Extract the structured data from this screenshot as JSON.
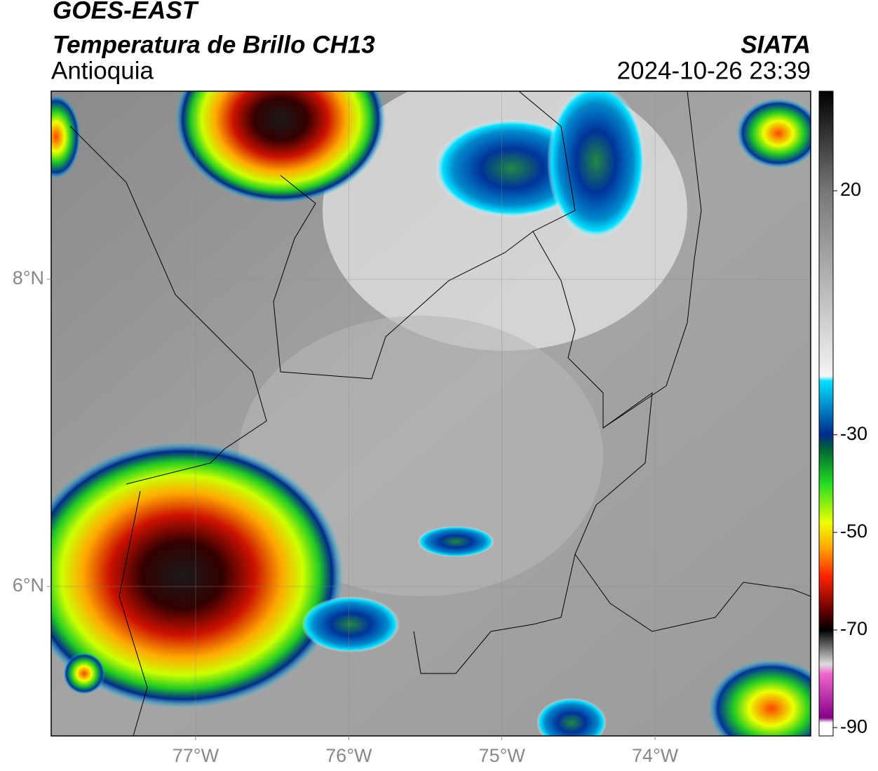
{
  "header": {
    "title": "GOES-EAST",
    "subtitle": "Temperatura de Brillo CH13",
    "region": "Antioquia",
    "source": "SIATA",
    "timestamp": "2024-10-26 23:39"
  },
  "map": {
    "lonlim": [
      -77.943,
      -72.984
    ],
    "latlim": [
      5.027,
      9.224
    ],
    "lonticks": [
      {
        "value": -77,
        "label": "77°W"
      },
      {
        "value": -76,
        "label": "76°W"
      },
      {
        "value": -75,
        "label": "75°W"
      },
      {
        "value": -74,
        "label": "74°W"
      }
    ],
    "latticks": [
      {
        "value": 6,
        "label": "6°N"
      },
      {
        "value": 8,
        "label": "8°N"
      }
    ],
    "grid": true
  },
  "colorbar": {
    "lim": [
      -91.7,
      40.4
    ],
    "ticks": [
      20,
      -30,
      -50,
      -70,
      -90
    ],
    "stops": [
      {
        "value": 40.4,
        "color": "#000000"
      },
      {
        "value": 20,
        "color": "#777777"
      },
      {
        "value": -18,
        "color": "#f4f4f4"
      },
      {
        "value": -19,
        "color": "#00e0ff"
      },
      {
        "value": -30,
        "color": "#002a8a"
      },
      {
        "value": -33,
        "color": "#006633"
      },
      {
        "value": -40,
        "color": "#22dd22"
      },
      {
        "value": -48,
        "color": "#eeff00"
      },
      {
        "value": -53,
        "color": "#ffaa00"
      },
      {
        "value": -59,
        "color": "#ff2200"
      },
      {
        "value": -66,
        "color": "#660000"
      },
      {
        "value": -70,
        "color": "#000000"
      },
      {
        "value": -77,
        "color": "#dddddd"
      },
      {
        "value": -79,
        "color": "#ee66cc"
      },
      {
        "value": -88,
        "color": "#880088"
      },
      {
        "value": -89,
        "color": "#ffffff"
      }
    ]
  }
}
